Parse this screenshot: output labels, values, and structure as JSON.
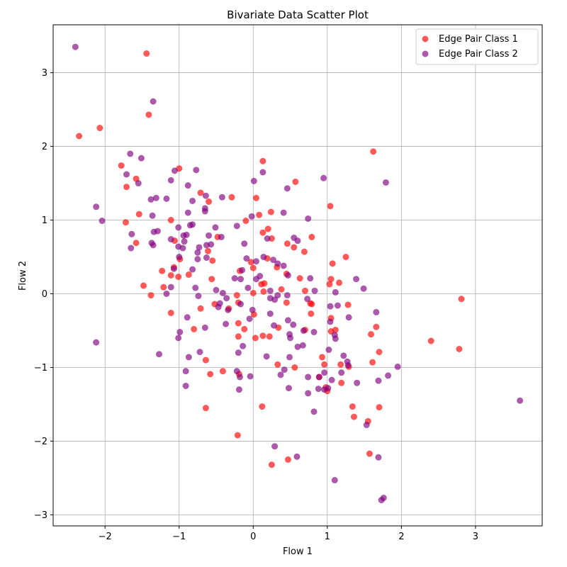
{
  "chart_data": {
    "type": "scatter",
    "title": "Bivariate Data Scatter Plot",
    "xlabel": "Flow 1",
    "ylabel": "Flow 2",
    "xlim": [
      -2.7,
      3.9
    ],
    "ylim": [
      -3.15,
      3.65
    ],
    "xticks": [
      -2,
      -1,
      0,
      1,
      2,
      3
    ],
    "yticks": [
      -3,
      -2,
      -1,
      0,
      1,
      2,
      3
    ],
    "xtick_labels": [
      "−2",
      "−1",
      "0",
      "1",
      "2",
      "3"
    ],
    "ytick_labels": [
      "−3",
      "−2",
      "−1",
      "0",
      "1",
      "2",
      "3"
    ],
    "grid": true,
    "legend_position": "top-right",
    "series": [
      {
        "name": "Edge Pair Class 1",
        "color": "#ff0000",
        "points": [
          [
            -2.35,
            2.14
          ],
          [
            -2.07,
            2.25
          ],
          [
            -1.44,
            3.26
          ],
          [
            -1.41,
            2.43
          ],
          [
            -1.78,
            1.74
          ],
          [
            -1.71,
            1.45
          ],
          [
            -1.58,
            1.56
          ],
          [
            -1.54,
            1.08
          ],
          [
            -1.72,
            0.97
          ],
          [
            -1.58,
            0.69
          ],
          [
            -1.0,
            1.7
          ],
          [
            -1.11,
            1.0
          ],
          [
            -1.06,
            0.72
          ],
          [
            -0.99,
            0.47
          ],
          [
            -1.07,
            0.36
          ],
          [
            -1.23,
            0.31
          ],
          [
            -1.21,
            0.09
          ],
          [
            -1.11,
            0.25
          ],
          [
            -1.01,
            0.23
          ],
          [
            -1.48,
            0.11
          ],
          [
            -1.38,
            -0.02
          ],
          [
            -1.11,
            -0.26
          ],
          [
            -0.87,
            0.26
          ],
          [
            -0.71,
            1.37
          ],
          [
            -0.6,
            1.25
          ],
          [
            -0.61,
            0.58
          ],
          [
            -0.55,
            0.45
          ],
          [
            -0.48,
            0.77
          ],
          [
            -0.56,
            0.2
          ],
          [
            -0.52,
            -0.14
          ],
          [
            -0.71,
            -0.2
          ],
          [
            -0.8,
            -0.48
          ],
          [
            -0.64,
            -0.9
          ],
          [
            -0.58,
            -1.09
          ],
          [
            -0.64,
            -1.55
          ],
          [
            -0.41,
            -1.05
          ],
          [
            -0.33,
            -0.2
          ],
          [
            -0.29,
            1.31
          ],
          [
            -0.22,
            -0.02
          ],
          [
            -0.18,
            0.31
          ],
          [
            -0.2,
            -0.12
          ],
          [
            -0.12,
            -0.48
          ],
          [
            -0.2,
            -0.4
          ],
          [
            -0.2,
            -0.58
          ],
          [
            -0.19,
            -1.09
          ],
          [
            -0.21,
            -1.92
          ],
          [
            -0.1,
            0.99
          ],
          [
            -0.03,
            0.43
          ],
          [
            0.0,
            0.35
          ],
          [
            0.0,
            0.01
          ],
          [
            0.01,
            -0.28
          ],
          [
            0.03,
            -0.6
          ],
          [
            0.04,
            1.3
          ],
          [
            0.08,
            1.07
          ],
          [
            0.13,
            1.8
          ],
          [
            0.13,
            0.83
          ],
          [
            0.15,
            0.14
          ],
          [
            0.11,
            0.13
          ],
          [
            0.14,
            0.03
          ],
          [
            0.13,
            -0.57
          ],
          [
            0.12,
            -1.53
          ],
          [
            0.19,
            0.48
          ],
          [
            0.2,
            0.88
          ],
          [
            0.25,
            0.75
          ],
          [
            0.24,
            1.11
          ],
          [
            0.22,
            -0.58
          ],
          [
            0.32,
            0.36
          ],
          [
            0.34,
            -0.46
          ],
          [
            0.33,
            -0.96
          ],
          [
            0.38,
            0.06
          ],
          [
            0.45,
            0.27
          ],
          [
            0.46,
            0.68
          ],
          [
            0.45,
            -0.12
          ],
          [
            0.55,
            0.63
          ],
          [
            0.57,
            1.52
          ],
          [
            0.56,
            -1.0
          ],
          [
            0.63,
            0.21
          ],
          [
            0.69,
            0.57
          ],
          [
            0.7,
            0.04
          ],
          [
            0.7,
            -0.49
          ],
          [
            0.79,
            0.77
          ],
          [
            0.77,
            -0.13
          ],
          [
            0.79,
            -0.14
          ],
          [
            0.78,
            -0.27
          ],
          [
            0.89,
            -1.13
          ],
          [
            0.93,
            -0.86
          ],
          [
            0.96,
            -0.96
          ],
          [
            0.98,
            -1.27
          ],
          [
            1.0,
            -1.32
          ],
          [
            1.04,
            1.19
          ],
          [
            1.03,
            0.13
          ],
          [
            1.05,
            0.2
          ],
          [
            1.05,
            -0.33
          ],
          [
            1.05,
            -0.51
          ],
          [
            1.07,
            0.41
          ],
          [
            1.11,
            -0.49
          ],
          [
            1.16,
            0.15
          ],
          [
            1.18,
            -0.96
          ],
          [
            1.19,
            -1.21
          ],
          [
            1.25,
            0.5
          ],
          [
            1.28,
            -0.15
          ],
          [
            1.29,
            -0.99
          ],
          [
            1.34,
            -1.53
          ],
          [
            1.36,
            -1.67
          ],
          [
            1.55,
            -1.73
          ],
          [
            1.57,
            -2.17
          ],
          [
            1.59,
            -0.55
          ],
          [
            1.61,
            -0.93
          ],
          [
            1.62,
            1.93
          ],
          [
            1.66,
            -0.45
          ],
          [
            1.7,
            -0.79
          ],
          [
            1.7,
            -1.54
          ],
          [
            2.4,
            -0.64
          ],
          [
            2.78,
            -0.75
          ],
          [
            2.81,
            -0.07
          ],
          [
            0.47,
            -2.25
          ],
          [
            0.25,
            -2.32
          ]
        ]
      },
      {
        "name": "Edge Pair Class 2",
        "color": "#800080",
        "points": [
          [
            -2.4,
            3.35
          ],
          [
            -1.35,
            2.61
          ],
          [
            -2.12,
            1.18
          ],
          [
            -2.04,
            0.99
          ],
          [
            -2.12,
            -0.66
          ],
          [
            -1.66,
            1.9
          ],
          [
            -1.51,
            1.84
          ],
          [
            -1.71,
            1.62
          ],
          [
            -1.55,
            1.5
          ],
          [
            -1.38,
            1.28
          ],
          [
            -1.31,
            1.3
          ],
          [
            -1.17,
            1.29
          ],
          [
            -1.64,
            0.81
          ],
          [
            -1.65,
            0.62
          ],
          [
            -1.34,
            0.84
          ],
          [
            -1.36,
            1.06
          ],
          [
            -1.29,
            0.85
          ],
          [
            -1.37,
            0.69
          ],
          [
            -1.35,
            0.66
          ],
          [
            -1.11,
            1.54
          ],
          [
            -1.06,
            1.67
          ],
          [
            -1.11,
            0.74
          ],
          [
            -1.01,
            0.64
          ],
          [
            -1.01,
            0.9
          ],
          [
            -0.94,
            0.79
          ],
          [
            -0.95,
            0.62
          ],
          [
            -0.93,
            0.71
          ],
          [
            -0.9,
            0.8
          ],
          [
            -1.0,
            0.5
          ],
          [
            -1.07,
            0.34
          ],
          [
            -1.17,
            0.0
          ],
          [
            -1.11,
            0.09
          ],
          [
            -1.27,
            -0.82
          ],
          [
            -0.99,
            -0.52
          ],
          [
            -1.01,
            -0.6
          ],
          [
            -0.89,
            -0.32
          ],
          [
            -0.91,
            -1.05
          ],
          [
            -0.87,
            -0.86
          ],
          [
            -0.91,
            -1.25
          ],
          [
            -0.88,
            1.47
          ],
          [
            -0.82,
            1.26
          ],
          [
            -0.77,
            1.68
          ],
          [
            -0.88,
            1.1
          ],
          [
            -0.85,
            0.93
          ],
          [
            -0.82,
            0.94
          ],
          [
            -0.73,
            0.63
          ],
          [
            -0.75,
            0.56
          ],
          [
            -0.75,
            0.47
          ],
          [
            -0.82,
            0.33
          ],
          [
            -0.78,
            0.08
          ],
          [
            -0.74,
            -0.03
          ],
          [
            -0.72,
            -0.79
          ],
          [
            -0.65,
            -0.46
          ],
          [
            -0.64,
            1.33
          ],
          [
            -0.65,
            1.16
          ],
          [
            -0.65,
            1.12
          ],
          [
            -0.6,
            0.79
          ],
          [
            -0.57,
            0.67
          ],
          [
            -0.63,
            0.49
          ],
          [
            -0.63,
            0.66
          ],
          [
            -0.51,
            0.9
          ],
          [
            -0.5,
            0.05
          ],
          [
            -0.47,
            -0.18
          ],
          [
            -0.45,
            -0.13
          ],
          [
            -0.42,
            1.31
          ],
          [
            -0.43,
            0.77
          ],
          [
            -0.41,
            0.01
          ],
          [
            -0.36,
            -0.06
          ],
          [
            -0.34,
            -0.22
          ],
          [
            -0.37,
            -0.41
          ],
          [
            -0.25,
            0.21
          ],
          [
            -0.22,
            0.92
          ],
          [
            -0.22,
            -1.05
          ],
          [
            -0.2,
            -0.8
          ],
          [
            -0.17,
            0.2
          ],
          [
            -0.17,
            -0.14
          ],
          [
            -0.15,
            0.32
          ],
          [
            -0.18,
            -1.13
          ],
          [
            -0.19,
            -1.3
          ],
          [
            -0.14,
            -0.71
          ],
          [
            -0.12,
            0.68
          ],
          [
            -0.09,
            0.48
          ],
          [
            -0.07,
            0.08
          ],
          [
            -0.05,
            -0.34
          ],
          [
            -0.04,
            -1.12
          ],
          [
            -0.02,
            1.05
          ],
          [
            0.01,
            1.53
          ],
          [
            -0.01,
            -0.22
          ],
          [
            0.04,
            0.2
          ],
          [
            0.04,
            0.44
          ],
          [
            0.13,
            1.65
          ],
          [
            0.14,
            0.5
          ],
          [
            0.19,
            0.75
          ],
          [
            0.23,
            0.04
          ],
          [
            0.23,
            -0.06
          ],
          [
            0.23,
            -0.27
          ],
          [
            0.27,
            0.46
          ],
          [
            0.29,
            -0.08
          ],
          [
            0.28,
            -0.43
          ],
          [
            0.18,
            -0.85
          ],
          [
            0.33,
            0.41
          ],
          [
            0.37,
            -1.1
          ],
          [
            0.41,
            0.38
          ],
          [
            0.41,
            1.1
          ],
          [
            0.42,
            -1.03
          ],
          [
            0.46,
            1.43
          ],
          [
            0.47,
            0.25
          ],
          [
            0.46,
            -0.02
          ],
          [
            0.47,
            -0.36
          ],
          [
            0.49,
            -0.55
          ],
          [
            0.5,
            -0.6
          ],
          [
            0.49,
            -0.86
          ],
          [
            0.48,
            -1.28
          ],
          [
            0.54,
            -0.42
          ],
          [
            0.55,
            0.76
          ],
          [
            0.6,
            0.72
          ],
          [
            0.6,
            -0.72
          ],
          [
            0.59,
            -2.21
          ],
          [
            0.68,
            -0.5
          ],
          [
            0.67,
            -0.7
          ],
          [
            0.74,
            1.02
          ],
          [
            0.73,
            -0.07
          ],
          [
            0.74,
            -1.13
          ],
          [
            0.74,
            -1.35
          ],
          [
            0.77,
            0.21
          ],
          [
            0.83,
            0.04
          ],
          [
            0.82,
            -0.52
          ],
          [
            0.82,
            -1.6
          ],
          [
            0.88,
            -1.29
          ],
          [
            0.89,
            -1.13
          ],
          [
            0.95,
            1.57
          ],
          [
            0.96,
            -1.07
          ],
          [
            0.96,
            -1.3
          ],
          [
            1.02,
            -0.76
          ],
          [
            1.01,
            -1.28
          ],
          [
            1.04,
            -0.38
          ],
          [
            1.04,
            -0.17
          ],
          [
            1.06,
            -1.17
          ],
          [
            1.11,
            0.02
          ],
          [
            1.1,
            -0.56
          ],
          [
            1.11,
            -0.61
          ],
          [
            1.14,
            -0.16
          ],
          [
            1.19,
            -1.07
          ],
          [
            1.22,
            -0.84
          ],
          [
            1.27,
            -0.92
          ],
          [
            1.28,
            -0.97
          ],
          [
            1.29,
            -0.32
          ],
          [
            1.39,
            0.2
          ],
          [
            1.4,
            -1.21
          ],
          [
            1.49,
            0.07
          ],
          [
            1.53,
            -1.78
          ],
          [
            1.66,
            -0.25
          ],
          [
            1.69,
            -1.18
          ],
          [
            1.69,
            -2.22
          ],
          [
            1.73,
            -2.8
          ],
          [
            1.76,
            -2.77
          ],
          [
            1.79,
            1.51
          ],
          [
            1.82,
            -1.11
          ],
          [
            1.95,
            -0.99
          ],
          [
            3.6,
            -1.45
          ],
          [
            0.29,
            -2.07
          ],
          [
            1.1,
            -2.53
          ],
          [
            0.33,
            -0.02
          ],
          [
            0.09,
            0.24
          ]
        ]
      }
    ]
  }
}
